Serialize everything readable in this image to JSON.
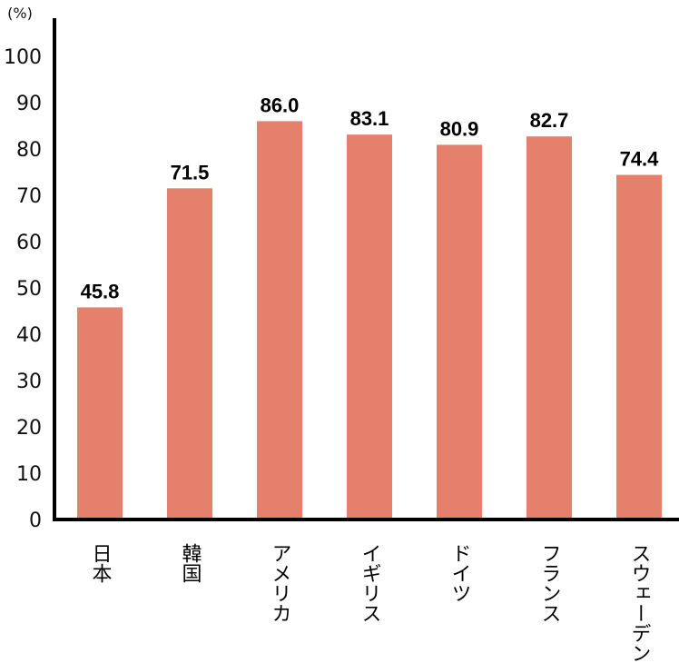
{
  "chart_data": {
    "type": "bar",
    "categories": [
      "日本",
      "韓国",
      "アメリカ",
      "イギリス",
      "ドイツ",
      "フランス",
      "スウェーデン"
    ],
    "values": [
      45.8,
      71.5,
      86.0,
      83.1,
      80.9,
      82.7,
      74.4
    ],
    "value_labels": [
      "45.8",
      "71.5",
      "86.0",
      "83.1",
      "80.9",
      "82.7",
      "74.4"
    ],
    "y_unit": "(%)",
    "ylim": [
      0,
      100
    ],
    "yticks": [
      "0",
      "10",
      "20",
      "30",
      "40",
      "50",
      "60",
      "70",
      "80",
      "90",
      "100"
    ],
    "grid": false,
    "bar_color": "#e5806d",
    "axis_color": "#000000"
  }
}
